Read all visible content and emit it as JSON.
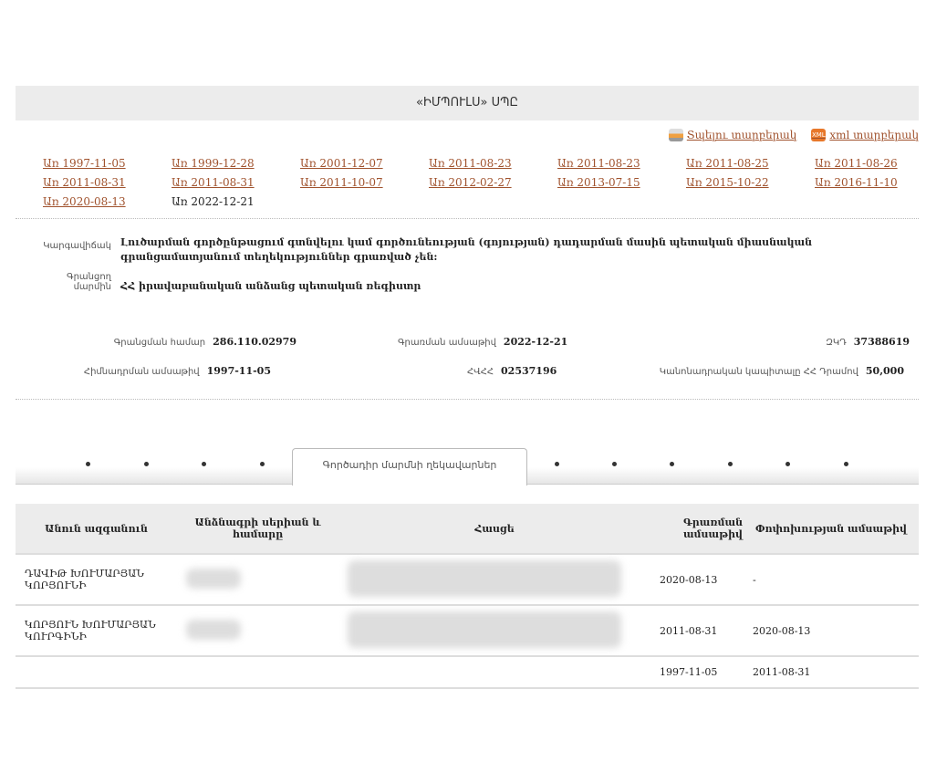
{
  "header": {
    "title": "«ԻՄՊՈՒԼՍ» ՍՊԸ"
  },
  "exports": {
    "print_label": "Տպելու տարբերակ",
    "xml_label": "xml տարբերակ",
    "xml_icon_text": "XML"
  },
  "versions": [
    "Առ 1997-11-05",
    "Առ 1999-12-28",
    "Առ 2001-12-07",
    "Առ 2011-08-23",
    "Առ 2011-08-23",
    "Առ 2011-08-25",
    "Առ 2011-08-26",
    "Առ 2011-08-31",
    "Առ 2011-08-31",
    "Առ 2011-10-07",
    "Առ 2012-02-27",
    "Առ 2013-07-15",
    "Առ 2015-10-22",
    "Առ 2016-11-10",
    "Առ 2020-08-13"
  ],
  "current_version": "Առ 2022-12-21",
  "status": {
    "label": "Կարգավիճակ",
    "value": "Լուծարման գործընթացում գտնվելու կամ գործունեության (գոյության) դադարման մասին պետական միասնական գրանցամատյանում տեղեկություններ գրառված չեն:"
  },
  "registrar": {
    "label": "Գրանցող մարմին",
    "value": "ՀՀ իրավաբանական անձանց պետական ռեգիստր"
  },
  "fields": {
    "reg_number": {
      "label": "Գրանցման համար",
      "value": "286.110.02979"
    },
    "reg_date": {
      "label": "Գրառման ամսաթիվ",
      "value": "2022-12-21"
    },
    "zkd": {
      "label": "ԶԿԴ",
      "value": "37388619"
    },
    "found_date": {
      "label": "Հիմնադրման ամսաթիվ",
      "value": "1997-11-05"
    },
    "tin": {
      "label": "ՀՎՀՀ",
      "value": "02537196"
    },
    "capital": {
      "label": "Կանոնադրական կապիտալը ՀՀ Դրամով",
      "value": "50,000"
    }
  },
  "tabs": {
    "active": "Գործադիր մարմնի ղեկավարներ"
  },
  "table": {
    "headers": [
      "Անուն ազգանուն",
      "Անձնագրի սերիան և համարը",
      "Հասցե",
      "Գրառման ամսաթիվ",
      "Փոփոխության ամսաթիվ"
    ],
    "rows": [
      {
        "name": "ԴԱՎԻԹ ԽՈՒՄԱՐՅԱՆ ԿՈՐՅՈՒՆԻ",
        "reg": "2020-08-13",
        "chg": "-"
      },
      {
        "name": "ԿՈՐՅՈՒՆ ԽՈՒՄԱՐՅԱՆ ԿՈՒՐԳԻՆԻ",
        "reg": "2011-08-31",
        "chg": "2020-08-13"
      },
      {
        "name": "",
        "reg": "1997-11-05",
        "chg": "2011-08-31"
      }
    ]
  }
}
